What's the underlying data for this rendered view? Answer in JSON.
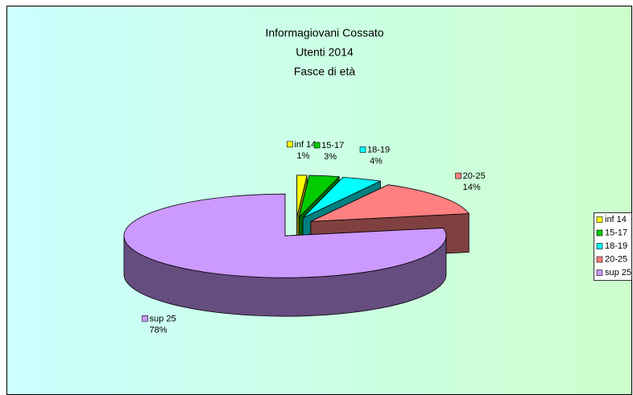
{
  "chart_data": {
    "type": "pie3d",
    "title": [
      "Informagiovani Cossato",
      "Utenti  2014",
      "Fasce di età"
    ],
    "categories": [
      "inf 14",
      "15-17",
      "18-19",
      "20-25",
      "sup 25"
    ],
    "values": [
      1,
      3,
      4,
      14,
      78
    ],
    "value_labels": [
      "1%",
      "3%",
      "4%",
      "14%",
      "78%"
    ],
    "colors": [
      "#ffff00",
      "#00cc00",
      "#00ffff",
      "#ff8080",
      "#cc99ff"
    ],
    "legend": "right"
  }
}
